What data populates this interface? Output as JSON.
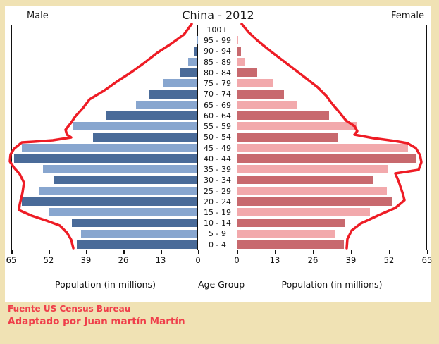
{
  "header": {
    "left_label": "Male",
    "title": "China - 2012",
    "right_label": "Female"
  },
  "axes": {
    "male_axis_label": "Population (in millions)",
    "center_axis_label": "Age Group",
    "female_axis_label": "Population (in millions)",
    "male_ticks": [
      65,
      52,
      39,
      26,
      13,
      0
    ],
    "female_ticks": [
      0,
      13,
      26,
      39,
      52,
      65
    ]
  },
  "footer": {
    "line1": "Fuente US Census Bureau",
    "line2": "Adaptado por Juan martín Martín"
  },
  "colors": {
    "background": "#f0e2b4",
    "panel": "#ffffff",
    "male_dark": "#4a6b99",
    "male_light": "#88a6cf",
    "female_dark": "#c8696e",
    "female_light": "#f2a9ac",
    "outline_red": "#ee1c25",
    "footer_red": "#ef3e4a"
  },
  "chart_data": {
    "type": "bar",
    "subtype": "population-pyramid",
    "title": "China - 2012",
    "unit": "millions of people",
    "xlabel_left": "Population (in millions)",
    "xlabel_right": "Population (in millions)",
    "ylabel": "Age Group",
    "xlim": [
      0,
      65
    ],
    "grid": false,
    "categories_top_to_bottom": [
      "100+",
      "95 - 99",
      "90 - 94",
      "85 - 89",
      "80 - 84",
      "75 - 79",
      "70 - 74",
      "65 - 69",
      "60 - 64",
      "55 - 59",
      "50 - 54",
      "45 - 49",
      "40 - 44",
      "35 - 39",
      "30 - 34",
      "25 - 29",
      "20 - 24",
      "15 - 19",
      "10 - 14",
      "5 - 9",
      "0 - 4"
    ],
    "series": [
      {
        "name": "Male",
        "side": "left",
        "values_top_to_bottom": [
          0.0,
          0.1,
          1.1,
          3.3,
          6.3,
          12.1,
          16.9,
          21.5,
          31.9,
          43.7,
          36.6,
          61.6,
          64.3,
          54.1,
          50.2,
          55.3,
          61.6,
          52.2,
          43.9,
          40.7,
          42.3
        ]
      },
      {
        "name": "Female",
        "side": "right",
        "values_top_to_bottom": [
          0.0,
          0.2,
          1.2,
          2.5,
          6.8,
          12.3,
          16.0,
          20.5,
          31.5,
          41.0,
          34.4,
          58.8,
          61.5,
          51.7,
          46.8,
          51.5,
          53.4,
          45.6,
          36.8,
          33.7,
          36.6
        ]
      }
    ],
    "outline_annotation": {
      "description": "hand-drawn red envelope tracing both sides of the pyramid",
      "color": "#ee1c25",
      "stroke_width": 3.5,
      "male_points": [
        [
          272,
          34
        ],
        [
          261,
          49
        ],
        [
          243,
          62
        ],
        [
          223,
          75
        ],
        [
          205,
          89
        ],
        [
          187,
          102
        ],
        [
          167,
          115
        ],
        [
          147,
          129
        ],
        [
          127,
          141
        ],
        [
          118,
          153
        ],
        [
          107,
          165
        ],
        [
          101,
          174
        ],
        [
          93,
          184
        ],
        [
          95,
          191
        ],
        [
          101,
          195
        ],
        [
          75,
          199
        ],
        [
          48,
          201
        ],
        [
          31,
          202
        ],
        [
          20,
          211
        ],
        [
          15,
          219
        ],
        [
          14,
          229
        ],
        [
          20,
          238
        ],
        [
          28,
          247
        ],
        [
          34,
          259
        ],
        [
          32,
          273
        ],
        [
          28,
          290
        ],
        [
          27,
          298
        ],
        [
          45,
          306
        ],
        [
          66,
          313
        ],
        [
          85,
          320
        ],
        [
          95,
          330
        ],
        [
          101,
          340
        ],
        [
          104,
          352
        ]
      ],
      "female_points": [
        [
          343,
          34
        ],
        [
          353,
          46
        ],
        [
          366,
          58
        ],
        [
          382,
          71
        ],
        [
          399,
          84
        ],
        [
          416,
          97
        ],
        [
          433,
          110
        ],
        [
          451,
          124
        ],
        [
          463,
          136
        ],
        [
          472,
          148
        ],
        [
          483,
          161
        ],
        [
          491,
          171
        ],
        [
          503,
          179
        ],
        [
          507,
          186
        ],
        [
          503,
          191
        ],
        [
          530,
          196
        ],
        [
          560,
          200
        ],
        [
          578,
          203
        ],
        [
          590,
          210
        ],
        [
          596,
          220
        ],
        [
          598,
          230
        ],
        [
          594,
          241
        ],
        [
          561,
          246
        ],
        [
          566,
          258
        ],
        [
          572,
          276
        ],
        [
          574,
          284
        ],
        [
          561,
          295
        ],
        [
          538,
          305
        ],
        [
          512,
          317
        ],
        [
          499,
          327
        ],
        [
          493,
          339
        ],
        [
          492,
          352
        ]
      ]
    }
  }
}
